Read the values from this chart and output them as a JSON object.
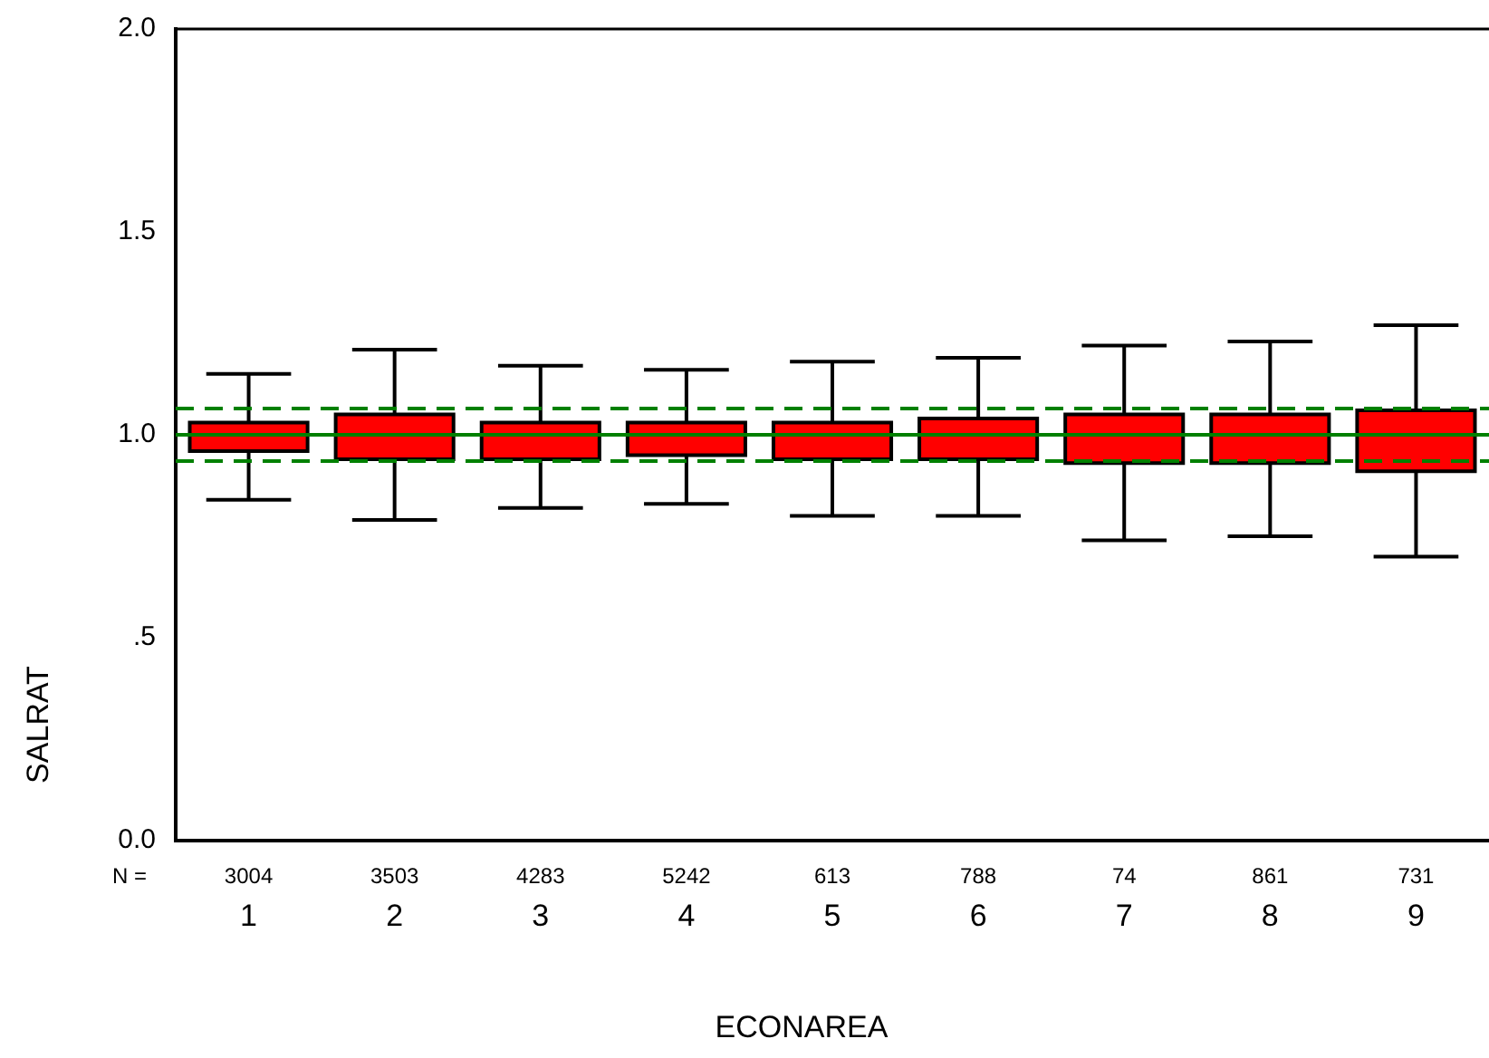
{
  "chart_data": {
    "type": "box",
    "xlabel": "ECONAREA",
    "ylabel": "SALRAT",
    "categories": [
      "1",
      "2",
      "3",
      "4",
      "5",
      "6",
      "7",
      "8",
      "9"
    ],
    "color": "#ff0000",
    "boxes": [
      {
        "low": 0.84,
        "q1": 0.96,
        "median": 1.0,
        "q3": 1.03,
        "high": 1.15
      },
      {
        "low": 0.79,
        "q1": 0.94,
        "median": 1.0,
        "q3": 1.05,
        "high": 1.21
      },
      {
        "low": 0.82,
        "q1": 0.94,
        "median": 1.0,
        "q3": 1.03,
        "high": 1.17
      },
      {
        "low": 0.83,
        "q1": 0.95,
        "median": 1.0,
        "q3": 1.03,
        "high": 1.16
      },
      {
        "low": 0.8,
        "q1": 0.94,
        "median": 1.0,
        "q3": 1.03,
        "high": 1.18
      },
      {
        "low": 0.8,
        "q1": 0.94,
        "median": 1.0,
        "q3": 1.04,
        "high": 1.19
      },
      {
        "low": 0.74,
        "q1": 0.93,
        "median": 1.0,
        "q3": 1.05,
        "high": 1.22
      },
      {
        "low": 0.75,
        "q1": 0.93,
        "median": 1.0,
        "q3": 1.05,
        "high": 1.23
      },
      {
        "low": 0.7,
        "q1": 0.91,
        "median": 1.0,
        "q3": 1.06,
        "high": 1.27
      }
    ],
    "ylim": [
      0,
      2
    ],
    "yticks": [
      {
        "value": 0,
        "label": "0.0"
      },
      {
        "value": 0.5,
        "label": ".5"
      },
      {
        "value": 1,
        "label": "1.0"
      },
      {
        "value": 1.5,
        "label": "1.5"
      },
      {
        "value": 2,
        "label": "2.0"
      }
    ],
    "ref_lines": [
      {
        "axis": "y",
        "value": 1.0,
        "color": "#008000",
        "line_style": "solid"
      },
      {
        "axis": "y",
        "value": 1.065,
        "color": "#008000",
        "line_style": "dashed"
      },
      {
        "axis": "y",
        "value": 0.935,
        "color": "#008000",
        "line_style": "dashed"
      }
    ],
    "annotations": [
      "N =",
      "3004",
      "3503",
      "4283",
      "5242",
      "613",
      "788",
      "74",
      "861",
      "731"
    ],
    "grid": false,
    "legend": false
  }
}
